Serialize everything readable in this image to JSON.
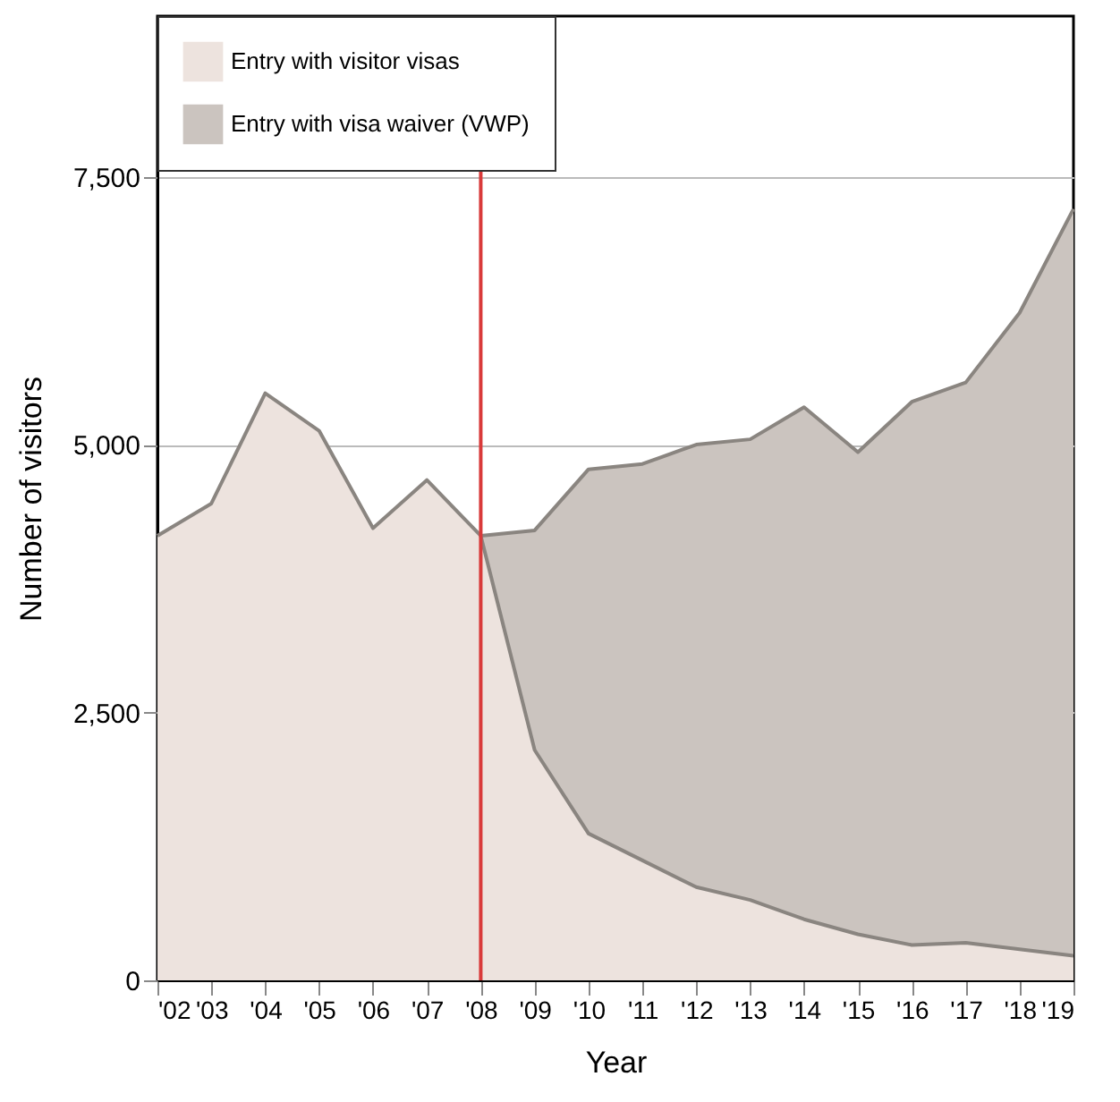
{
  "chart_data": {
    "type": "area",
    "stacked": true,
    "xlabel": "Year",
    "ylabel": "Number of visitors",
    "x": [
      2002,
      2003,
      2004,
      2005,
      2006,
      2007,
      2008,
      2009,
      2010,
      2011,
      2012,
      2013,
      2014,
      2015,
      2016,
      2017,
      2018,
      2019
    ],
    "series": [
      {
        "name": "Entry with visitor visas",
        "color": "#ede3de",
        "values": [
          4150,
          4450,
          5480,
          5130,
          4220,
          4670,
          4150,
          2150,
          1370,
          1120,
          870,
          750,
          570,
          430,
          330,
          350,
          290,
          230
        ]
      },
      {
        "name": "Entry with visa waiver (VWP)",
        "color": "#cbc4bf",
        "values": [
          null,
          null,
          null,
          null,
          null,
          null,
          0,
          2050,
          3400,
          3700,
          4130,
          4300,
          4780,
          4500,
          5070,
          5230,
          5940,
          6970
        ]
      }
    ],
    "xlim": [
      2002,
      2019
    ],
    "xticks": [
      {
        "value": 2002,
        "label": "'02"
      },
      {
        "value": 2003,
        "label": "'03"
      },
      {
        "value": 2004,
        "label": "'04"
      },
      {
        "value": 2005,
        "label": "'05"
      },
      {
        "value": 2006,
        "label": "'06"
      },
      {
        "value": 2007,
        "label": "'07"
      },
      {
        "value": 2008,
        "label": "'08"
      },
      {
        "value": 2009,
        "label": "'09"
      },
      {
        "value": 2010,
        "label": "'10"
      },
      {
        "value": 2011,
        "label": "'11"
      },
      {
        "value": 2012,
        "label": "'12"
      },
      {
        "value": 2013,
        "label": "'13"
      },
      {
        "value": 2014,
        "label": "'14"
      },
      {
        "value": 2015,
        "label": "'15"
      },
      {
        "value": 2016,
        "label": "'16"
      },
      {
        "value": 2017,
        "label": "'17"
      },
      {
        "value": 2018,
        "label": "'18"
      },
      {
        "value": 2019,
        "label": "'19"
      }
    ],
    "ylim": [
      0,
      9000
    ],
    "yticks": [
      0,
      {
        "value": 2500,
        "label": "2,500"
      },
      {
        "value": 5000,
        "label": "5,000"
      },
      {
        "value": 7500,
        "label": "7,500"
      }
    ],
    "grid": "y",
    "legend": "top left",
    "ref_lines": [
      {
        "axis": "x",
        "value": 2008,
        "color": "#d93a3a"
      }
    ]
  }
}
